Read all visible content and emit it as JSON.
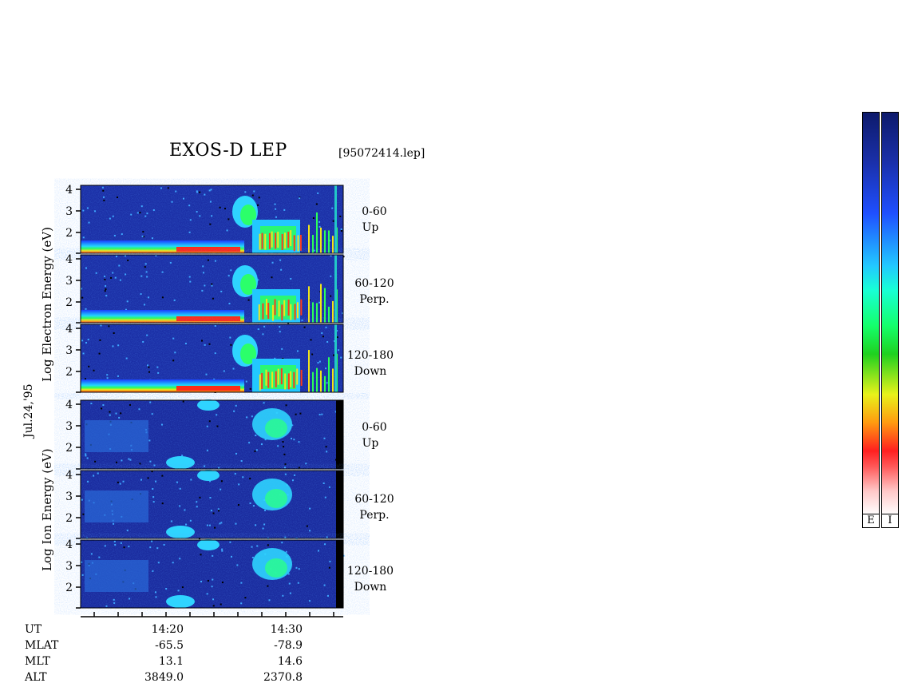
{
  "chart_data": {
    "type": "heatmap",
    "title": "EXOS-D LEP",
    "file_label": "[95072414.lep]",
    "date_label": "Jul.24,'95",
    "y_ticks": [
      "4",
      "3",
      "2"
    ],
    "electron_axis_label": "Log Electron Energy (eV)",
    "ion_axis_label": "Log Ion Energy (eV)",
    "electron_panels": [
      {
        "angle": "0-60",
        "direction": "Up"
      },
      {
        "angle": "60-120",
        "direction": "Perp."
      },
      {
        "angle": "120-180",
        "direction": "Down"
      }
    ],
    "ion_panels": [
      {
        "angle": "0-60",
        "direction": "Up"
      },
      {
        "angle": "60-120",
        "direction": "Perp."
      },
      {
        "angle": "120-180",
        "direction": "Down"
      }
    ],
    "x_ticks": [
      "14:20",
      "14:30"
    ],
    "orbit_rows": [
      {
        "name": "UT",
        "values": [
          "14:20",
          "14:30"
        ]
      },
      {
        "name": "MLAT",
        "values": [
          "-65.5",
          "-78.9"
        ]
      },
      {
        "name": "MLT",
        "values": [
          "13.1",
          "14.6"
        ]
      },
      {
        "name": "ALT",
        "values": [
          "3849.0",
          "2370.8"
        ]
      }
    ],
    "colorbars": [
      "E",
      "I"
    ]
  }
}
